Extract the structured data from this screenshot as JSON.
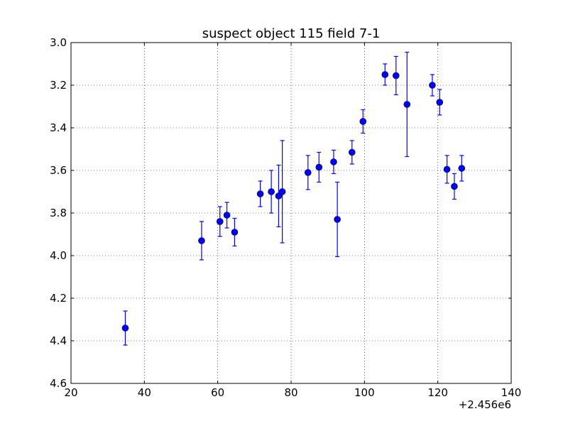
{
  "chart_data": {
    "type": "scatter",
    "title": "suspect object 115 field 7-1",
    "xlabel": "",
    "ylabel": "",
    "x_offset_label": "+2.456e6",
    "xlim": [
      20,
      140
    ],
    "ylim": [
      4.6,
      3.0
    ],
    "y_inverted": true,
    "x_ticks": [
      20,
      40,
      60,
      80,
      100,
      120,
      140
    ],
    "x_tick_labels": [
      "20",
      "40",
      "60",
      "80",
      "100",
      "120",
      "140"
    ],
    "y_ticks": [
      3.0,
      3.2,
      3.4,
      3.6,
      3.8,
      4.0,
      4.2,
      4.4,
      4.6
    ],
    "y_tick_labels": [
      "3.0",
      "3.2",
      "3.4",
      "3.6",
      "3.8",
      "4.0",
      "4.2",
      "4.4",
      "4.6"
    ],
    "grid": true,
    "color": "#0000ff",
    "points": [
      {
        "x": 34.8,
        "y": 4.34,
        "err": 0.08
      },
      {
        "x": 55.6,
        "y": 3.93,
        "err": 0.09
      },
      {
        "x": 60.6,
        "y": 3.84,
        "err": 0.07
      },
      {
        "x": 62.5,
        "y": 3.81,
        "err": 0.06
      },
      {
        "x": 64.6,
        "y": 3.89,
        "err": 0.065
      },
      {
        "x": 71.6,
        "y": 3.71,
        "err": 0.06
      },
      {
        "x": 74.6,
        "y": 3.7,
        "err": 0.1
      },
      {
        "x": 76.6,
        "y": 3.72,
        "err": 0.145
      },
      {
        "x": 77.6,
        "y": 3.7,
        "err": 0.24
      },
      {
        "x": 84.6,
        "y": 3.61,
        "err": 0.08
      },
      {
        "x": 87.6,
        "y": 3.585,
        "err": 0.07
      },
      {
        "x": 91.6,
        "y": 3.56,
        "err": 0.055
      },
      {
        "x": 92.6,
        "y": 3.83,
        "err": 0.175
      },
      {
        "x": 96.6,
        "y": 3.515,
        "err": 0.055
      },
      {
        "x": 99.6,
        "y": 3.37,
        "err": 0.055
      },
      {
        "x": 105.6,
        "y": 3.15,
        "err": 0.05
      },
      {
        "x": 108.6,
        "y": 3.155,
        "err": 0.09
      },
      {
        "x": 111.6,
        "y": 3.29,
        "err": 0.245
      },
      {
        "x": 118.5,
        "y": 3.2,
        "err": 0.05
      },
      {
        "x": 120.5,
        "y": 3.28,
        "err": 0.06
      },
      {
        "x": 122.5,
        "y": 3.595,
        "err": 0.065
      },
      {
        "x": 124.5,
        "y": 3.675,
        "err": 0.06
      },
      {
        "x": 126.5,
        "y": 3.59,
        "err": 0.06
      }
    ]
  }
}
